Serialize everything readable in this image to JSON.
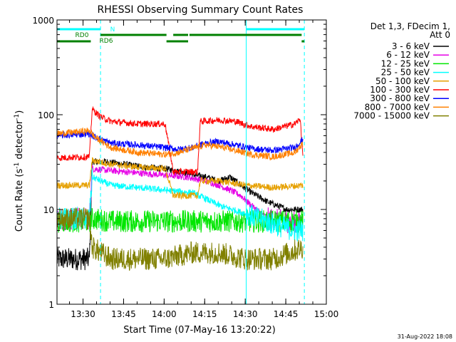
{
  "chart_data": {
    "type": "line",
    "title": "RHESSI Observing Summary Count Rates",
    "xlabel": "Start Time (07-May-16 13:20:22)",
    "ylabel_main": "Count Rate (s",
    "ylabel_sup1": "-1",
    "ylabel_mid": " detector",
    "ylabel_sup2": "-1",
    "ylabel_end": ")",
    "yscale": "log",
    "ylim": [
      1,
      1000
    ],
    "xlim_minutes": [
      0,
      99.63
    ],
    "x_ticks": [
      {
        "label": "13:30",
        "t": 9.63
      },
      {
        "label": "13:45",
        "t": 24.63
      },
      {
        "label": "14:00",
        "t": 39.63
      },
      {
        "label": "14:15",
        "t": 54.63
      },
      {
        "label": "14:30",
        "t": 69.63
      },
      {
        "label": "14:45",
        "t": 84.63
      },
      {
        "label": "15:00",
        "t": 99.63
      }
    ],
    "y_ticks": [
      {
        "label": "1",
        "v": 1
      },
      {
        "label": "10",
        "v": 10
      },
      {
        "label": "100",
        "v": 100
      },
      {
        "label": "1000",
        "v": 1000
      }
    ],
    "legend_title": [
      "Det 1,3, FDecim 1,",
      "Att 0"
    ],
    "legend_position": "right",
    "series": [
      {
        "name": "3 - 6 keV",
        "color": "#000000",
        "values_t": [
          0,
          12,
          13,
          18,
          25,
          32,
          40,
          48,
          55,
          60,
          64,
          68,
          72,
          78,
          85,
          91
        ],
        "values": [
          3,
          3,
          32,
          32,
          30,
          28,
          27,
          24,
          22,
          20,
          22,
          18,
          15,
          12,
          10,
          10
        ]
      },
      {
        "name": "6 - 12 keV",
        "color": "#e600e6",
        "values_t": [
          0,
          12,
          13,
          18,
          25,
          32,
          40,
          48,
          55,
          60,
          64,
          68,
          72,
          78,
          85,
          91
        ],
        "values": [
          8,
          8,
          27,
          26,
          25,
          24,
          23,
          22,
          20,
          18,
          16,
          14,
          11,
          8,
          7.5,
          7
        ]
      },
      {
        "name": "12 - 25 keV",
        "color": "#00e600",
        "values_t": [
          0,
          12,
          13,
          20,
          30,
          40,
          50,
          60,
          70,
          80,
          91
        ],
        "values": [
          7.5,
          7.5,
          8,
          7.5,
          7.5,
          7.5,
          7.5,
          7.5,
          7.5,
          7.5,
          7.5
        ]
      },
      {
        "name": "25 - 50 keV",
        "color": "#00ffff",
        "values_t": [
          0,
          12,
          13,
          20,
          30,
          40,
          50,
          55,
          60,
          70,
          80,
          88,
          91
        ],
        "values": [
          8,
          8,
          22,
          18,
          17,
          16,
          15,
          13,
          11,
          9,
          7,
          6,
          6
        ]
      },
      {
        "name": "50 - 100 keV",
        "color": "#e6a000",
        "values_t": [
          0,
          12,
          13,
          20,
          30,
          40,
          43,
          52,
          53,
          60,
          70,
          80,
          91
        ],
        "values": [
          18,
          18,
          33,
          30,
          28,
          27,
          14,
          14,
          20,
          20,
          18,
          17,
          18
        ]
      },
      {
        "name": "100 - 300 keV",
        "color": "#ff0000",
        "values_t": [
          0,
          12,
          13,
          16,
          20,
          30,
          40,
          43,
          52,
          53,
          60,
          66,
          72,
          80,
          88,
          90,
          91
        ],
        "values": [
          35,
          36,
          115,
          95,
          85,
          80,
          80,
          25,
          25,
          85,
          88,
          85,
          75,
          70,
          80,
          90,
          35
        ]
      },
      {
        "name": "300 - 800 keV",
        "color": "#0000ff",
        "values_t": [
          0,
          8,
          12,
          14,
          20,
          30,
          40,
          45,
          50,
          55,
          60,
          66,
          72,
          80,
          88,
          91
        ],
        "values": [
          60,
          62,
          63,
          58,
          50,
          48,
          45,
          43,
          45,
          50,
          52,
          48,
          44,
          42,
          45,
          55
        ]
      },
      {
        "name": "800 - 7000 keV",
        "color": "#ff8000",
        "values_t": [
          0,
          8,
          12,
          14,
          20,
          30,
          40,
          45,
          50,
          55,
          60,
          66,
          72,
          80,
          88,
          91
        ],
        "values": [
          63,
          66,
          68,
          58,
          45,
          40,
          38,
          40,
          44,
          48,
          46,
          42,
          38,
          36,
          40,
          50
        ]
      },
      {
        "name": "7000 - 15000 keV",
        "color": "#808000",
        "values_t": [
          0,
          12,
          13,
          20,
          30,
          40,
          50,
          60,
          70,
          80,
          91
        ],
        "values": [
          8,
          8,
          4,
          3,
          3,
          3,
          3.5,
          3.5,
          3,
          3,
          4
        ]
      }
    ],
    "attenuator_bars": [
      {
        "label": "N",
        "color": "#00ffff",
        "segments": [
          [
            0,
            16.1
          ],
          [
            70,
            91.5
          ]
        ]
      },
      {
        "label": "RD0",
        "color": "#008000",
        "segments": [
          [
            16.1,
            40.5
          ],
          [
            43,
            48.5
          ],
          [
            49,
            90.5
          ]
        ]
      },
      {
        "label": "RD6",
        "color": "#008000",
        "segments": [
          [
            0,
            12.5
          ],
          [
            40.5,
            48.5
          ],
          [
            90.5,
            91.5
          ]
        ]
      }
    ],
    "vertical_markers": [
      {
        "t": 0,
        "style": "solid"
      },
      {
        "t": 16.1,
        "style": "dashed"
      },
      {
        "t": 70,
        "style": "solid"
      },
      {
        "t": 91.5,
        "style": "dashed"
      }
    ],
    "footer_date": "31-Aug-2022 18:08"
  }
}
